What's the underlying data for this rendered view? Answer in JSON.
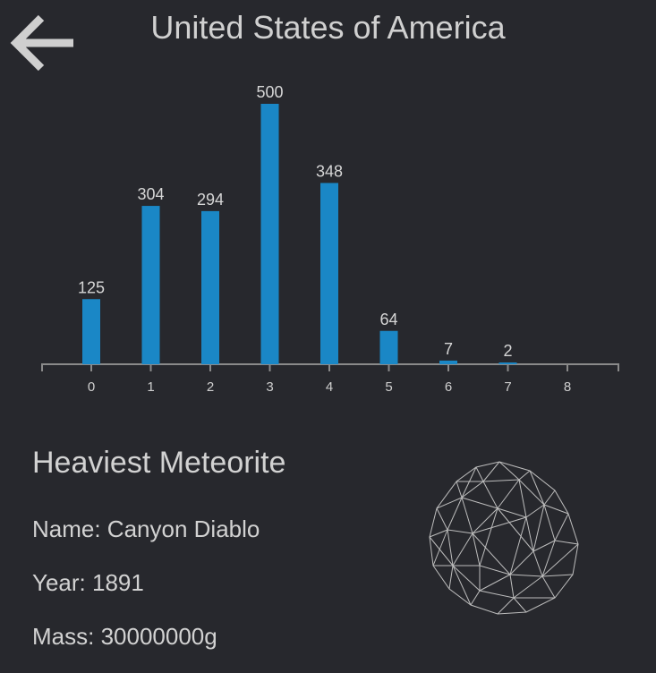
{
  "header": {
    "back_icon": "arrow-left-icon",
    "title": "United States of America"
  },
  "chart_data": {
    "type": "bar",
    "title": "",
    "xlabel": "",
    "ylabel": "",
    "categories": [
      "0",
      "1",
      "2",
      "3",
      "4",
      "5",
      "6",
      "7",
      "8"
    ],
    "values": [
      125,
      304,
      294,
      500,
      348,
      64,
      7,
      2,
      null
    ],
    "ylim": [
      0,
      500
    ],
    "grid": false,
    "bar_color": "#1a87c6"
  },
  "meteorite": {
    "heading": "Heaviest Meteorite",
    "name": "Name: Canyon Diablo",
    "year": "Year: 1891",
    "mass": "Mass: 30000000g",
    "model_icon": "meteorite-wireframe-icon"
  }
}
